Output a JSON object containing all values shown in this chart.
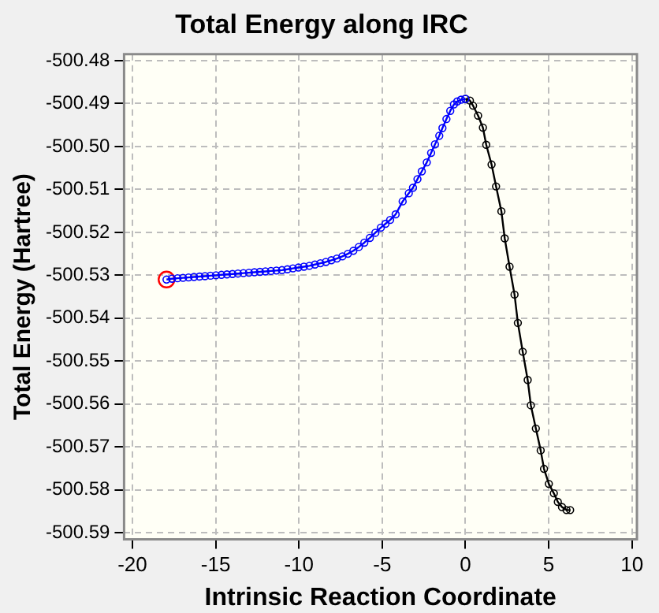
{
  "chart_data": {
    "type": "line",
    "title": "Total Energy along IRC",
    "xlabel": "Intrinsic Reaction Coordinate",
    "ylabel": "Total Energy (Hartree)",
    "xlim": [
      -20.5,
      10.3
    ],
    "xticks": [
      -20,
      -15,
      -10,
      -5,
      0,
      5,
      10
    ],
    "ylim": [
      -500.5915,
      -500.4785
    ],
    "yticks": [
      -500.48,
      -500.49,
      {
        "value": -500.5,
        "label": "-500.50"
      },
      -500.51,
      -500.52,
      -500.53,
      -500.54,
      -500.55,
      -500.56,
      -500.57,
      -500.58,
      -500.59
    ],
    "grid": true,
    "marker": "circle",
    "line_style": "solid",
    "series": [
      {
        "color": "#0000ff",
        "x": [
          -17.95,
          -17.62,
          -17.29,
          -16.96,
          -16.63,
          -16.3,
          -15.97,
          -15.64,
          -15.31,
          -14.98,
          -14.65,
          -14.32,
          -13.99,
          -13.66,
          -13.33,
          -13.0,
          -12.67,
          -12.34,
          -12.01,
          -11.68,
          -11.35,
          -11.02,
          -10.69,
          -10.36,
          -10.03,
          -9.7,
          -9.37,
          -9.04,
          -8.71,
          -8.38,
          -8.05,
          -7.72,
          -7.39,
          -7.06,
          -6.73,
          -6.4,
          -6.07,
          -5.74,
          -5.41,
          -5.08,
          -4.8,
          -4.52,
          -4.19,
          -3.77,
          -3.4,
          -3.15,
          -2.88,
          -2.62,
          -2.32,
          -2.06,
          -1.83,
          -1.57,
          -1.38,
          -1.14,
          -0.91,
          -0.69,
          -0.49,
          -0.26,
          0
        ],
        "values": [
          -500.531,
          -500.5308,
          -500.5307,
          -500.5306,
          -500.5305,
          -500.5304,
          -500.5303,
          -500.5302,
          -500.5301,
          -500.53,
          -500.5299,
          -500.5298,
          -500.5297,
          -500.5296,
          -500.5295,
          -500.5294,
          -500.5293,
          -500.5292,
          -500.5291,
          -500.529,
          -500.5289,
          -500.5288,
          -500.5286,
          -500.5284,
          -500.5282,
          -500.528,
          -500.5278,
          -500.5275,
          -500.5272,
          -500.5269,
          -500.5265,
          -500.5261,
          -500.5256,
          -500.525,
          -500.5243,
          -500.5234,
          -500.5224,
          -500.5213,
          -500.5201,
          -500.5189,
          -500.518,
          -500.5171,
          -500.5158,
          -500.5128,
          -500.5109,
          -500.5096,
          -500.5076,
          -500.5058,
          -500.5037,
          -500.5015,
          -500.4995,
          -500.4975,
          -500.4957,
          -500.4936,
          -500.4917,
          -500.4902,
          -500.4895,
          -500.4891,
          -500.4889
        ]
      },
      {
        "color": "#000000",
        "x": [
          0,
          0.27,
          0.46,
          0.76,
          1.05,
          1.25,
          1.57,
          1.84,
          2.16,
          2.36,
          2.65,
          2.95,
          3.15,
          3.44,
          3.74,
          3.93,
          4.23,
          4.52,
          4.72,
          5.01,
          5.31,
          5.55,
          5.8,
          6.07,
          6.29
        ],
        "values": [
          -500.4889,
          -500.4893,
          -500.4905,
          -500.4928,
          -500.4956,
          -500.4996,
          -500.5042,
          -500.5093,
          -500.5151,
          -500.5214,
          -500.528,
          -500.5345,
          -500.5411,
          -500.5478,
          -500.5544,
          -500.5603,
          -500.5657,
          -500.5708,
          -500.5751,
          -500.5786,
          -500.5808,
          -500.5828,
          -500.584,
          -500.5847,
          -500.5847
        ]
      },
      {
        "type": "scatter",
        "color": "#ff0000",
        "x": [
          -17.95
        ],
        "values": [
          -500.531
        ]
      }
    ]
  }
}
